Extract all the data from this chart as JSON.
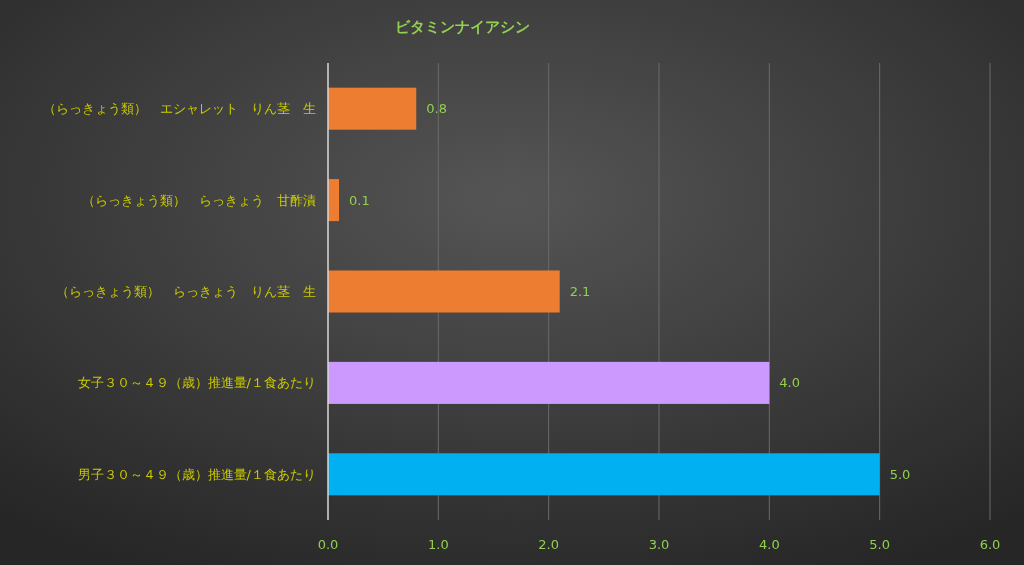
{
  "chart_data": {
    "type": "bar",
    "orientation": "horizontal",
    "title": "ビタミンナイアシン",
    "categories": [
      "（らっきょう類）　エシャレット　りん茎　生",
      "（らっきょう類）　らっきょう　甘酢漬",
      "（らっきょう類）　らっきょう　りん茎　生",
      "女子３０～４９（歳）推進量/１食あたり",
      "男子３０～４９（歳）推進量/１食あたり"
    ],
    "values": [
      0.8,
      0.1,
      2.1,
      4.0,
      5.0
    ],
    "colors": [
      "#ed7d31",
      "#ed7d31",
      "#ed7d31",
      "#cc99ff",
      "#00b0f0"
    ],
    "value_labels": [
      "0.8",
      "0.1",
      "2.1",
      "4.0",
      "5.0"
    ],
    "xlim": [
      0,
      6
    ],
    "xticks": [
      {
        "value": 0,
        "label": "0.0"
      },
      {
        "value": 1,
        "label": "1.0"
      },
      {
        "value": 2,
        "label": "2.0"
      },
      {
        "value": 3,
        "label": "3.0"
      },
      {
        "value": 4,
        "label": "4.0"
      },
      {
        "value": 5,
        "label": "5.0"
      },
      {
        "value": 6,
        "label": "6.0"
      }
    ],
    "grid": "x"
  }
}
